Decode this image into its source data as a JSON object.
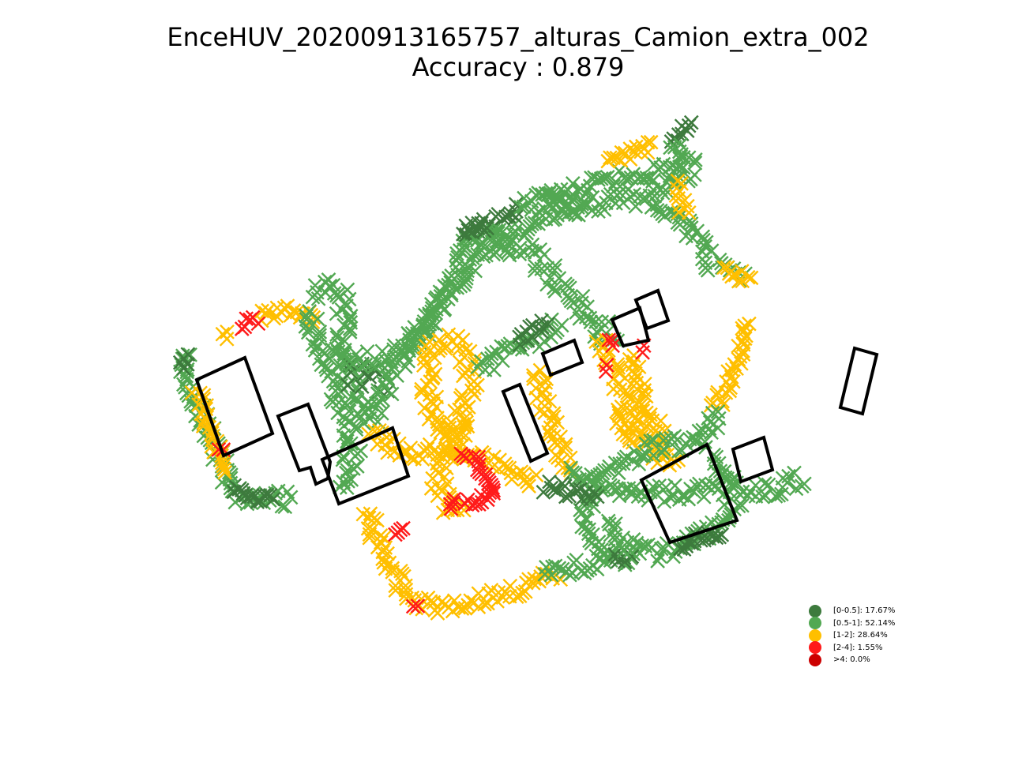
{
  "title": "EnceHUV_20200913165757_alturas_Camion_extra_002",
  "subtitle": "Accuracy : 0.879",
  "colors": {
    "band_0": "#3d7a3d",
    "band_1": "#52a852",
    "band_2": "#ffbf00",
    "band_3": "#ff1a1a",
    "band_4": "#cc0000",
    "building_outline": "#000000"
  },
  "legend": {
    "items": [
      {
        "label": "[0-0.5]: 17.67%",
        "color": "#3d7a3d"
      },
      {
        "label": "[0.5-1]: 52.14%",
        "color": "#52a852"
      },
      {
        "label": "[1-2]: 28.64%",
        "color": "#ffbf00"
      },
      {
        "label": "[2-4]: 1.55%",
        "color": "#ff1a1a"
      },
      {
        "label": ">4: 0.0%",
        "color": "#cc0000"
      }
    ]
  },
  "map": {
    "marker": "cross"
  }
}
